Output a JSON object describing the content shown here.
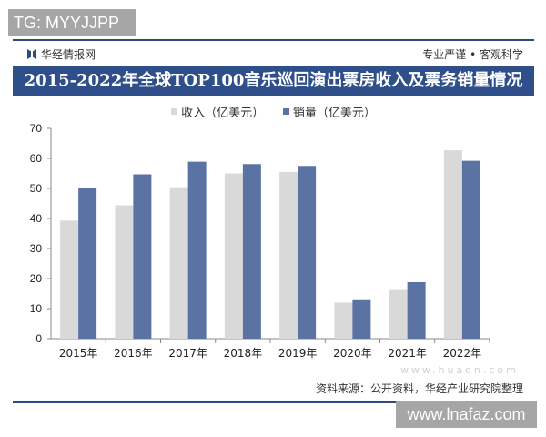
{
  "watermark_top": "TG: MYYJJPP",
  "watermark_bottom": "www.lnafaz.com",
  "brand": "华经情报网",
  "slogan": "专业严谨 • 客观科学",
  "source": "资料来源：公开资料，华经产业研究院整理",
  "logo_watermark": "www.huaon.com",
  "colors": {
    "revenue": "#d9d9d9",
    "sales": "#5b73a3",
    "title_bar": "#2f4f8b"
  },
  "chart_data": {
    "type": "bar",
    "title": "2015-2022年全球TOP100音乐巡回演出票房收入及票务销量情况",
    "categories": [
      "2015年",
      "2016年",
      "2017年",
      "2018年",
      "2019年",
      "2020年",
      "2021年",
      "2022年"
    ],
    "series": [
      {
        "name": "收入（亿美元）",
        "values": [
          39.3,
          44.4,
          50.4,
          55.0,
          55.5,
          12.0,
          16.5,
          62.7
        ]
      },
      {
        "name": "销量（亿美元）",
        "values": [
          50.2,
          54.7,
          58.9,
          58.1,
          57.5,
          13.1,
          18.8,
          59.2
        ]
      }
    ],
    "ylim": [
      0,
      70
    ],
    "yticks": [
      "0",
      "10",
      "20",
      "30",
      "40",
      "50",
      "60",
      "70"
    ],
    "grid": false,
    "legend": "top"
  }
}
